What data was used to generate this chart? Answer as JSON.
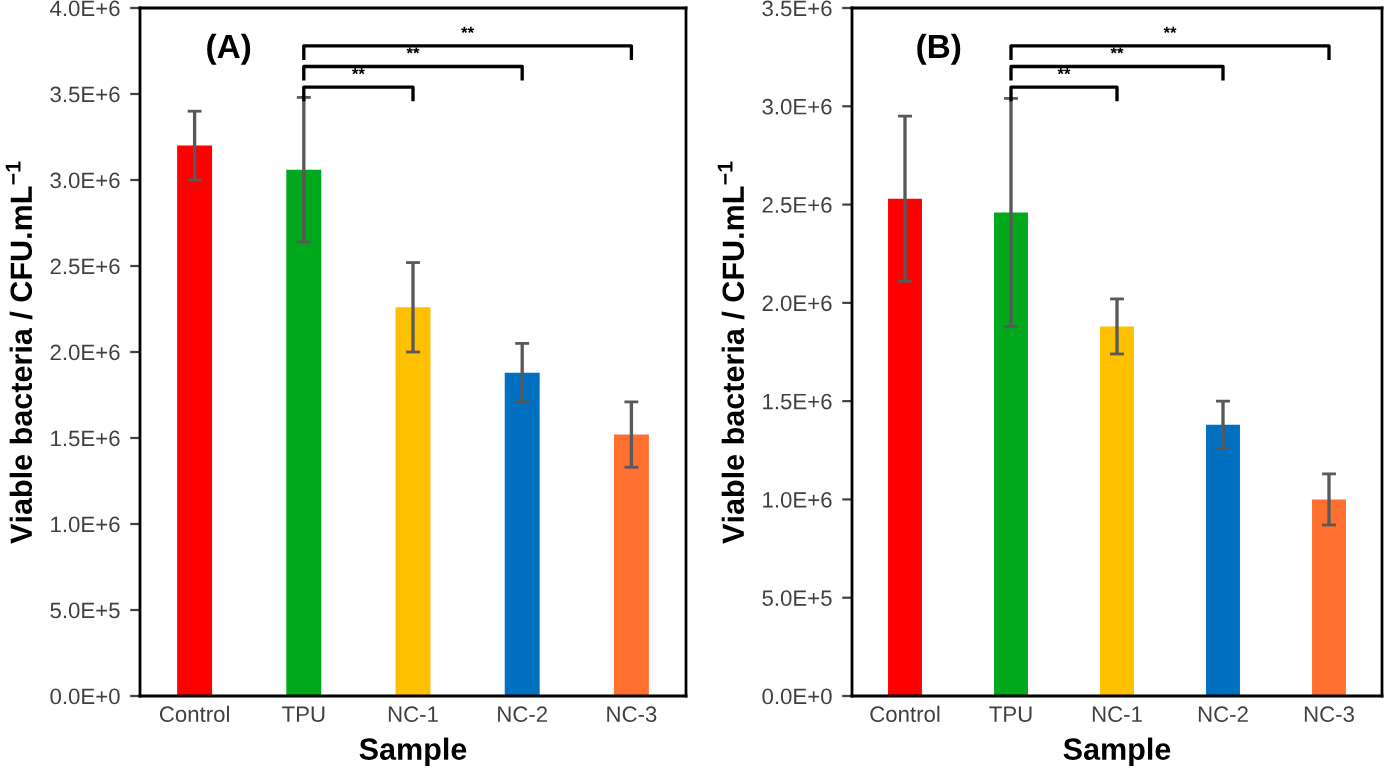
{
  "chart_data": [
    {
      "type": "bar",
      "title": "(A)",
      "xlabel": "Sample",
      "ylabel": "Viable bacteria / CFU.mL$^{−1}$",
      "categories": [
        "Control",
        "TPU",
        "NC-1",
        "NC-2",
        "NC-3"
      ],
      "values": [
        3200000,
        3060000,
        2260000,
        1880000,
        1520000
      ],
      "errors": [
        200000,
        420000,
        260000,
        170000,
        190000
      ],
      "colors": [
        "#ff0000",
        "#00a81c",
        "#ffc000",
        "#0070c0",
        "#ff7030"
      ],
      "ylim": [
        0,
        4000000
      ],
      "yticks": [
        {
          "value": 0,
          "label": "0.0E+0"
        },
        {
          "value": 500000,
          "label": "5.0E+5"
        },
        {
          "value": 1000000,
          "label": "1.0E+6"
        },
        {
          "value": 1500000,
          "label": "1.5E+6"
        },
        {
          "value": 2000000,
          "label": "2.0E+6"
        },
        {
          "value": 2500000,
          "label": "2.5E+6"
        },
        {
          "value": 3000000,
          "label": "3.0E+6"
        },
        {
          "value": 3500000,
          "label": "3.5E+6"
        },
        {
          "value": 4000000,
          "label": "4.0E+6"
        }
      ],
      "annotations": [
        "**",
        "**",
        "**"
      ],
      "grid": false,
      "legend": false
    },
    {
      "type": "bar",
      "title": "(B)",
      "xlabel": "Sample",
      "ylabel": "Viable bacteria / CFU.mL$^{−1}$",
      "categories": [
        "Control",
        "TPU",
        "NC-1",
        "NC-2",
        "NC-3"
      ],
      "values": [
        2530000,
        2460000,
        1880000,
        1380000,
        1000000
      ],
      "errors": [
        420000,
        580000,
        140000,
        120000,
        130000
      ],
      "colors": [
        "#ff0000",
        "#00a81c",
        "#ffc000",
        "#0070c0",
        "#ff7030"
      ],
      "ylim": [
        0,
        3500000
      ],
      "yticks": [
        {
          "value": 0,
          "label": "0.0E+0"
        },
        {
          "value": 500000,
          "label": "5.0E+5"
        },
        {
          "value": 1000000,
          "label": "1.0E+6"
        },
        {
          "value": 1500000,
          "label": "1.5E+6"
        },
        {
          "value": 2000000,
          "label": "2.0E+6"
        },
        {
          "value": 2500000,
          "label": "2.5E+6"
        },
        {
          "value": 3000000,
          "label": "3.0E+6"
        },
        {
          "value": 3500000,
          "label": "3.5E+6"
        }
      ],
      "annotations": [
        "**",
        "**",
        "**"
      ],
      "grid": false,
      "legend": false
    }
  ]
}
